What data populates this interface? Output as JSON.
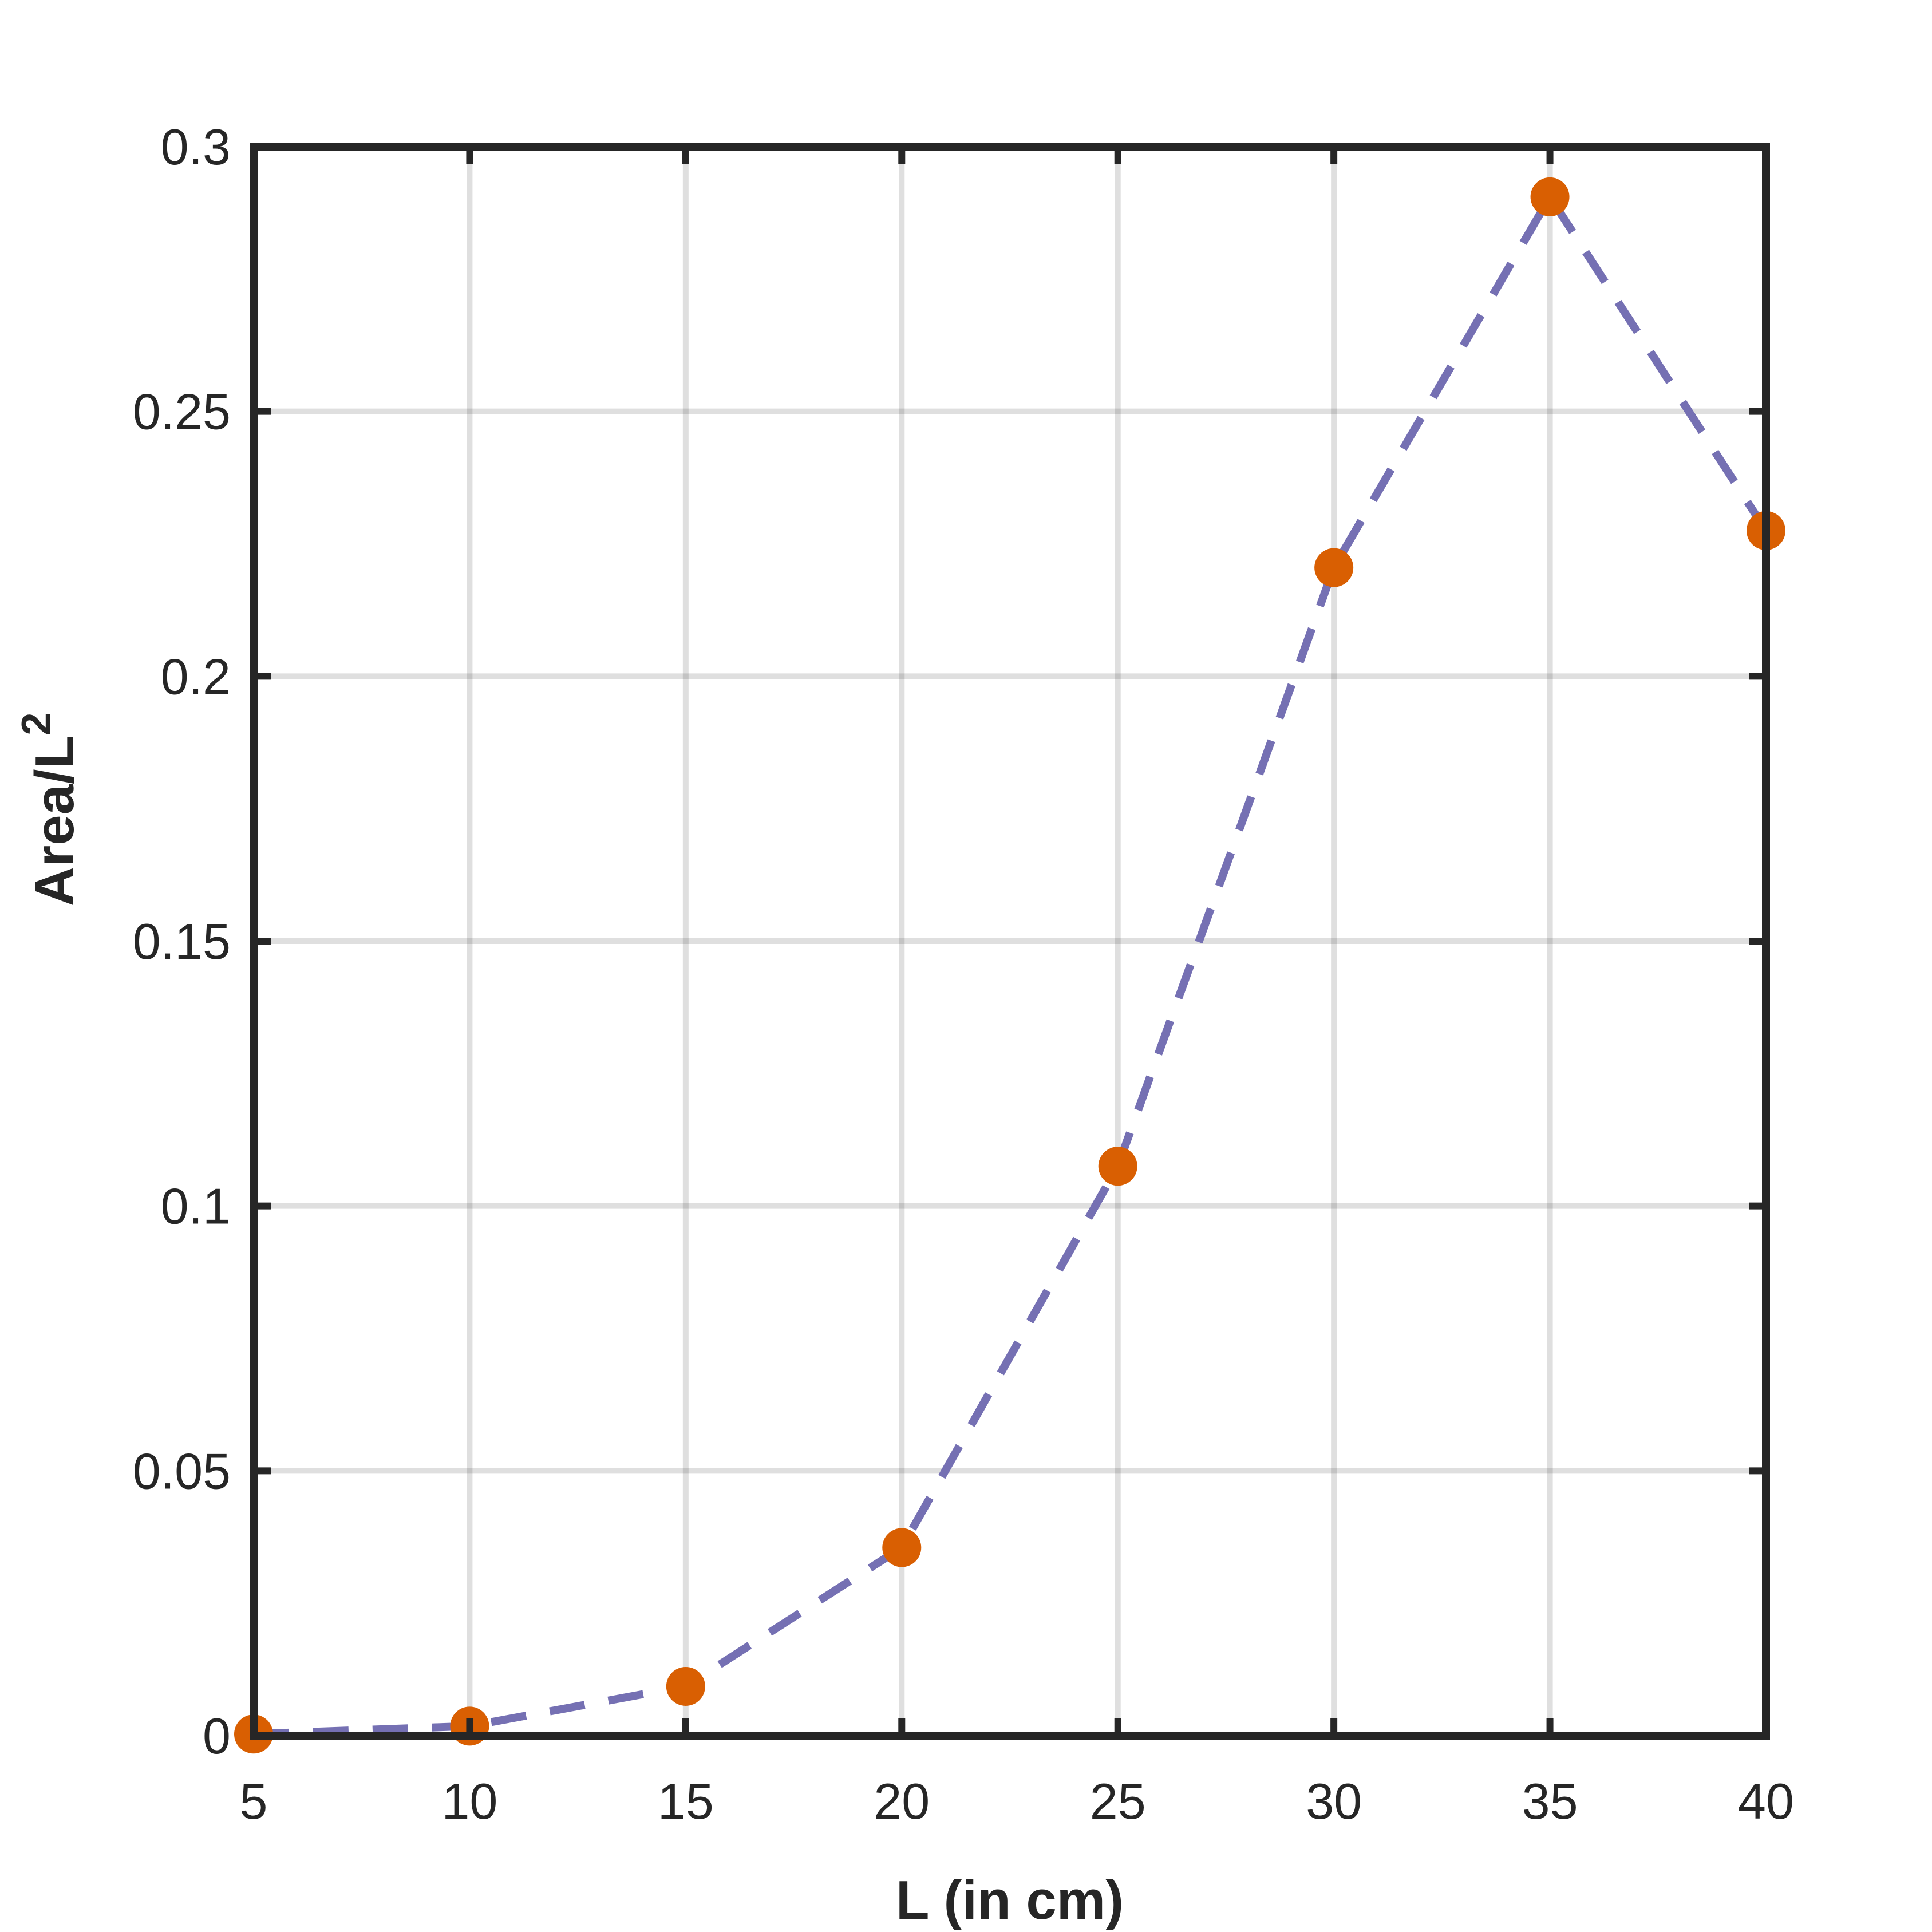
{
  "chart_data": {
    "type": "line",
    "title": "",
    "xlabel": "L (in cm)",
    "ylabel": "Area/L",
    "ylabel_superscript": "2",
    "xlim": [
      5,
      40
    ],
    "ylim": [
      0,
      0.3
    ],
    "xticks": [
      5,
      10,
      15,
      20,
      25,
      30,
      35,
      40
    ],
    "xtick_labels": [
      "5",
      "10",
      "15",
      "20",
      "25",
      "30",
      "35",
      "40"
    ],
    "yticks": [
      0,
      0.05,
      0.1,
      0.15,
      0.2,
      0.25,
      0.3
    ],
    "ytick_labels": [
      "0",
      "0.05",
      "0.1",
      "0.15",
      "0.2",
      "0.25",
      "0.3"
    ],
    "grid": true,
    "series": [
      {
        "x": [
          5,
          10,
          15,
          20,
          25,
          30,
          35,
          40
        ],
        "y": [
          0.0003,
          0.0018,
          0.0093,
          0.0355,
          0.1075,
          0.2205,
          0.2905,
          0.2275
        ],
        "line_style": "dashed",
        "line_color": "#7570b3",
        "marker": "circle",
        "marker_color": "#d95f02"
      }
    ]
  }
}
